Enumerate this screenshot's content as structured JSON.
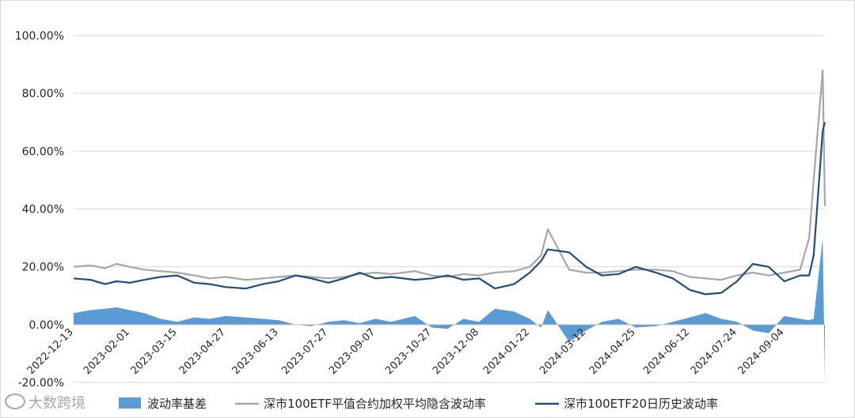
{
  "chart_data": {
    "type": "line",
    "title": "",
    "xlabel": "",
    "ylabel": "",
    "ylim": [
      -0.2,
      1.0
    ],
    "y_ticks": [
      "100.00%",
      "80.00%",
      "60.00%",
      "40.00%",
      "20.00%",
      "0.00%",
      "-20.00%"
    ],
    "y_tick_values": [
      1.0,
      0.8,
      0.6,
      0.4,
      0.2,
      0.0,
      -0.2
    ],
    "x_ticks": [
      "2022-12-13",
      "2023-02-01",
      "2023-03-15",
      "2023-04-27",
      "2023-06-13",
      "2023-07-27",
      "2023-09-07",
      "2023-10-27",
      "2023-12-08",
      "2024-01-22",
      "2024-03-12",
      "2024-04-25",
      "2024-06-12",
      "2024-07-24",
      "2024-09-04"
    ],
    "x_range": [
      "2022-12-13",
      "2024-10-10"
    ],
    "grid": "horizontal",
    "legend_position": "bottom",
    "series": [
      {
        "name": "波动率基差",
        "kind": "area",
        "color": "#5b9bd5",
        "x": [
          "2022-12-13",
          "2022-12-28",
          "2023-01-10",
          "2023-01-20",
          "2023-02-01",
          "2023-02-14",
          "2023-02-28",
          "2023-03-15",
          "2023-03-30",
          "2023-04-13",
          "2023-04-27",
          "2023-05-15",
          "2023-05-30",
          "2023-06-13",
          "2023-06-28",
          "2023-07-12",
          "2023-07-27",
          "2023-08-10",
          "2023-08-24",
          "2023-09-07",
          "2023-09-21",
          "2023-10-12",
          "2023-10-27",
          "2023-11-10",
          "2023-11-24",
          "2023-12-08",
          "2023-12-22",
          "2024-01-08",
          "2024-01-22",
          "2024-02-01",
          "2024-02-07",
          "2024-02-26",
          "2024-03-12",
          "2024-03-26",
          "2024-04-10",
          "2024-04-25",
          "2024-05-13",
          "2024-05-28",
          "2024-06-12",
          "2024-06-26",
          "2024-07-10",
          "2024-07-24",
          "2024-08-07",
          "2024-08-21",
          "2024-09-04",
          "2024-09-18",
          "2024-09-26",
          "2024-09-30",
          "2024-10-08",
          "2024-10-10"
        ],
        "values": [
          0.04,
          0.05,
          0.055,
          0.06,
          0.05,
          0.04,
          0.02,
          0.01,
          0.025,
          0.02,
          0.03,
          0.025,
          0.02,
          0.015,
          0.0,
          -0.005,
          0.01,
          0.015,
          0.005,
          0.02,
          0.01,
          0.03,
          -0.01,
          -0.015,
          0.02,
          0.01,
          0.055,
          0.045,
          0.02,
          -0.01,
          0.05,
          -0.06,
          -0.02,
          0.01,
          0.02,
          -0.01,
          -0.005,
          0.01,
          0.025,
          0.04,
          0.02,
          0.01,
          -0.02,
          -0.03,
          0.03,
          0.02,
          0.015,
          0.02,
          0.3,
          -0.2
        ]
      },
      {
        "name": "深市100ETF平值合约加权平均隐含波动率",
        "kind": "line",
        "color": "#a6a6a6",
        "x": [
          "2022-12-13",
          "2022-12-28",
          "2023-01-10",
          "2023-01-20",
          "2023-02-01",
          "2023-02-14",
          "2023-02-28",
          "2023-03-15",
          "2023-03-30",
          "2023-04-13",
          "2023-04-27",
          "2023-05-15",
          "2023-05-30",
          "2023-06-13",
          "2023-06-28",
          "2023-07-12",
          "2023-07-27",
          "2023-08-10",
          "2023-08-24",
          "2023-09-07",
          "2023-09-21",
          "2023-10-12",
          "2023-10-27",
          "2023-11-10",
          "2023-11-24",
          "2023-12-08",
          "2023-12-22",
          "2024-01-08",
          "2024-01-22",
          "2024-02-01",
          "2024-02-07",
          "2024-02-26",
          "2024-03-12",
          "2024-03-26",
          "2024-04-10",
          "2024-04-25",
          "2024-05-13",
          "2024-05-28",
          "2024-06-12",
          "2024-06-26",
          "2024-07-10",
          "2024-07-24",
          "2024-08-07",
          "2024-08-21",
          "2024-09-04",
          "2024-09-18",
          "2024-09-26",
          "2024-09-30",
          "2024-10-08",
          "2024-10-10"
        ],
        "values": [
          0.2,
          0.205,
          0.195,
          0.21,
          0.2,
          0.19,
          0.185,
          0.18,
          0.17,
          0.16,
          0.165,
          0.155,
          0.16,
          0.165,
          0.17,
          0.165,
          0.16,
          0.165,
          0.175,
          0.18,
          0.175,
          0.185,
          0.17,
          0.165,
          0.175,
          0.17,
          0.18,
          0.185,
          0.2,
          0.24,
          0.33,
          0.19,
          0.18,
          0.18,
          0.185,
          0.19,
          0.19,
          0.185,
          0.165,
          0.16,
          0.155,
          0.17,
          0.18,
          0.17,
          0.18,
          0.19,
          0.3,
          0.5,
          0.88,
          0.41
        ]
      },
      {
        "name": "深市100ETF20日历史波动率",
        "kind": "line",
        "color": "#1f4e79",
        "x": [
          "2022-12-13",
          "2022-12-28",
          "2023-01-10",
          "2023-01-20",
          "2023-02-01",
          "2023-02-14",
          "2023-02-28",
          "2023-03-15",
          "2023-03-30",
          "2023-04-13",
          "2023-04-27",
          "2023-05-15",
          "2023-05-30",
          "2023-06-13",
          "2023-06-28",
          "2023-07-12",
          "2023-07-27",
          "2023-08-10",
          "2023-08-24",
          "2023-09-07",
          "2023-09-21",
          "2023-10-12",
          "2023-10-27",
          "2023-11-10",
          "2023-11-24",
          "2023-12-08",
          "2023-12-22",
          "2024-01-08",
          "2024-01-22",
          "2024-02-01",
          "2024-02-07",
          "2024-02-26",
          "2024-03-12",
          "2024-03-26",
          "2024-04-10",
          "2024-04-25",
          "2024-05-13",
          "2024-05-28",
          "2024-06-12",
          "2024-06-26",
          "2024-07-10",
          "2024-07-24",
          "2024-08-07",
          "2024-08-21",
          "2024-09-04",
          "2024-09-18",
          "2024-09-26",
          "2024-09-30",
          "2024-10-08",
          "2024-10-10"
        ],
        "values": [
          0.16,
          0.155,
          0.14,
          0.15,
          0.145,
          0.155,
          0.165,
          0.17,
          0.145,
          0.14,
          0.13,
          0.125,
          0.14,
          0.15,
          0.17,
          0.16,
          0.145,
          0.16,
          0.18,
          0.16,
          0.165,
          0.155,
          0.16,
          0.17,
          0.155,
          0.16,
          0.125,
          0.14,
          0.18,
          0.22,
          0.26,
          0.25,
          0.2,
          0.17,
          0.175,
          0.2,
          0.18,
          0.16,
          0.12,
          0.105,
          0.11,
          0.15,
          0.21,
          0.2,
          0.15,
          0.17,
          0.17,
          0.24,
          0.67,
          0.7
        ]
      }
    ]
  },
  "watermark": {
    "text": "大数跨境"
  }
}
